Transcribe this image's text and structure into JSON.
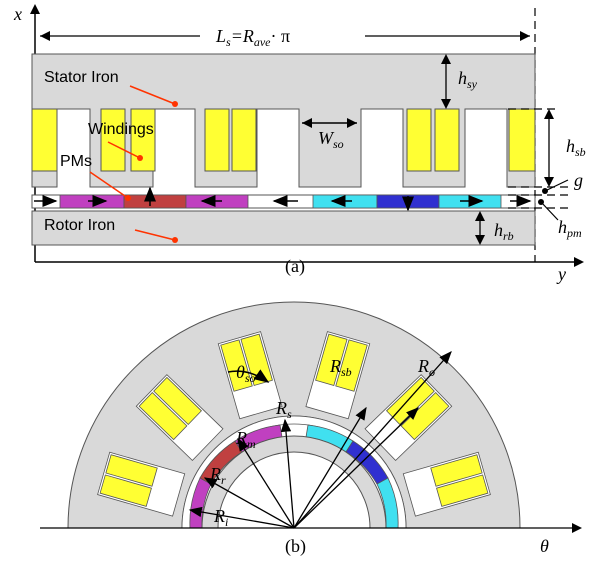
{
  "top": {
    "axis_x": "x",
    "axis_y": "y",
    "length_eq": "L",
    "length_eq_sub": "s",
    "length_eq_rhs": "=R",
    "length_eq_rhs_sub": "ave",
    "length_eq_tail": "· π",
    "stator": "Stator Iron",
    "windings": "Windings",
    "pms": "PMs",
    "rotor": "Rotor Iron",
    "h_sy": "h",
    "h_sy_sub": "sy",
    "h_sb": "h",
    "h_sb_sub": "sb",
    "g": "g",
    "h_pm": "h",
    "h_pm_sub": "pm",
    "h_rb": "h",
    "h_rb_sub": "rb",
    "w_so": "W",
    "w_so_sub": "so",
    "caption": "(a)"
  },
  "bottom": {
    "theta_so": "θ",
    "theta_so_sub": "so",
    "r_sb": "R",
    "r_sb_sub": "sb",
    "r_o": "R",
    "r_o_sub": "o",
    "r_s": "R",
    "r_s_sub": "s",
    "r_m": "R",
    "r_m_sub": "m",
    "r_r": "R",
    "r_r_sub": "r",
    "r_i": "R",
    "r_i_sub": "i",
    "theta_axis": "θ",
    "caption": "(b)"
  },
  "colors": {
    "iron": "#d9d9d9",
    "winding": "#ffff33",
    "pm_purple": "#c040c0",
    "pm_red": "#c04040",
    "pm_cyan": "#40e0f0",
    "pm_blue": "#3030d0",
    "pointer": "#ff3300"
  }
}
